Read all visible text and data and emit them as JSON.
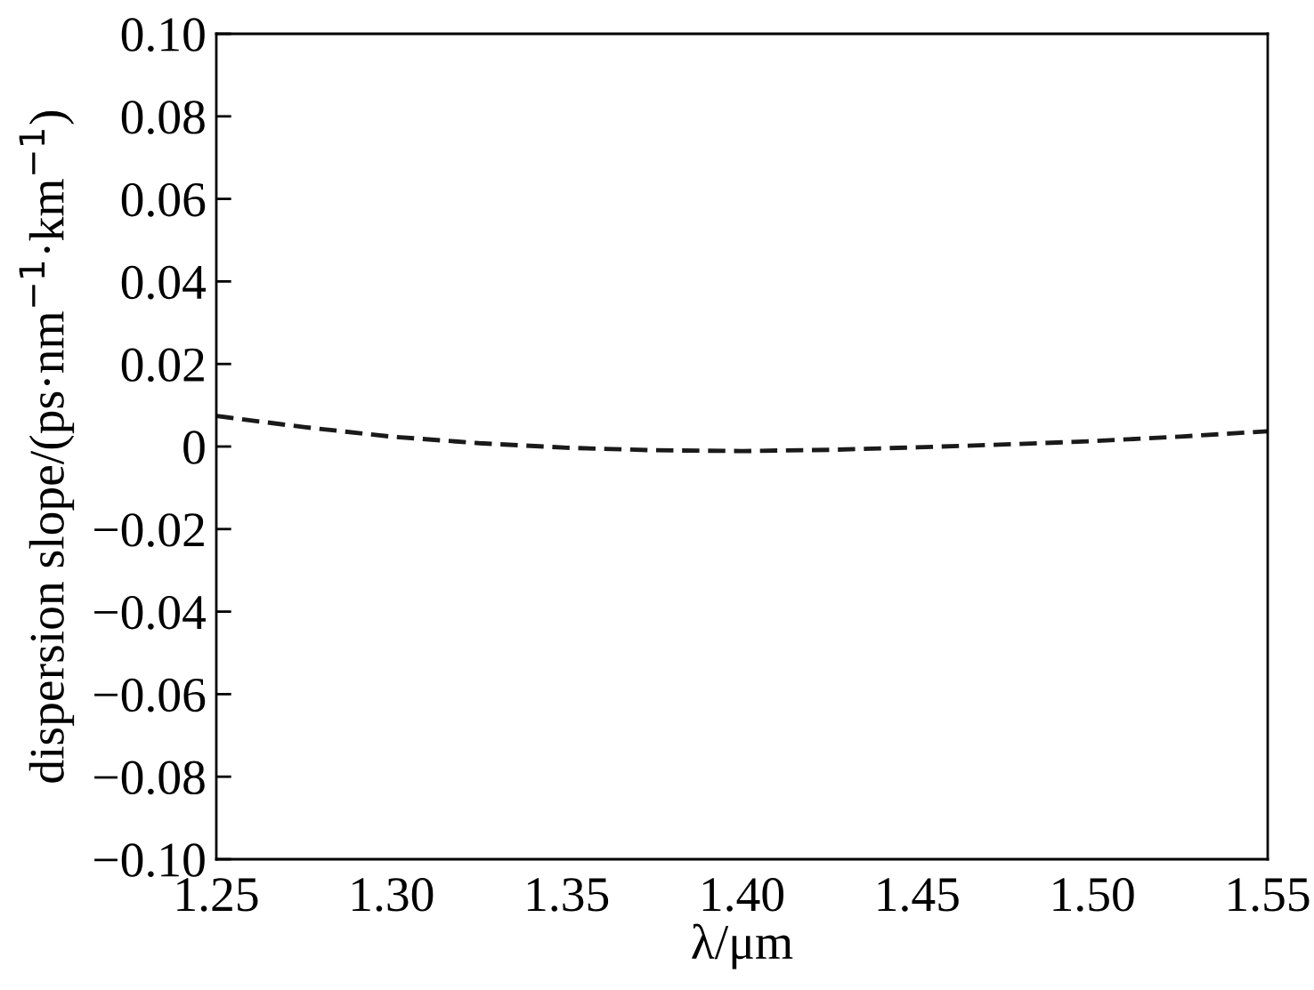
{
  "chart_data": {
    "type": "line",
    "xlabel": "λ/μm",
    "ylabel": "dispersion slope/(ps·nm$^{−1}$·km$^{−1}$)",
    "x": [
      1.25,
      1.275,
      1.3,
      1.325,
      1.35,
      1.375,
      1.4,
      1.425,
      1.45,
      1.475,
      1.5,
      1.525,
      1.55
    ],
    "series": [
      {
        "color": "#1a1a1a",
        "values": [
          0.0074,
          0.0047,
          0.0024,
          0.0008,
          -0.0003,
          -0.0009,
          -0.0011,
          -0.0008,
          -0.0002,
          0.0005,
          0.0013,
          0.0024,
          0.0037
        ]
      }
    ],
    "xlim": [
      1.25,
      1.55
    ],
    "xticks": [
      {
        "value": 1.25,
        "label": "1.25"
      },
      {
        "value": 1.3,
        "label": "1.30"
      },
      {
        "value": 1.35,
        "label": "1.35"
      },
      {
        "value": 1.4,
        "label": "1.40"
      },
      {
        "value": 1.45,
        "label": "1.45"
      },
      {
        "value": 1.5,
        "label": "1.50"
      },
      {
        "value": 1.55,
        "label": "1.55"
      }
    ],
    "ylim": [
      -0.1,
      0.1
    ],
    "yticks": [
      {
        "value": -0.1,
        "label": "−0.10"
      },
      {
        "value": -0.08,
        "label": "−0.08"
      },
      {
        "value": -0.06,
        "label": "−0.06"
      },
      {
        "value": -0.04,
        "label": "−0.04"
      },
      {
        "value": -0.02,
        "label": "−0.02"
      },
      0,
      {
        "value": 0.02,
        "label": "0.02"
      },
      {
        "value": 0.04,
        "label": "0.04"
      },
      {
        "value": 0.06,
        "label": "0.06"
      },
      {
        "value": 0.08,
        "label": "0.08"
      },
      {
        "value": 0.1,
        "label": "0.10"
      }
    ],
    "grid": false,
    "line_style": "dashed",
    "marker": "none"
  }
}
